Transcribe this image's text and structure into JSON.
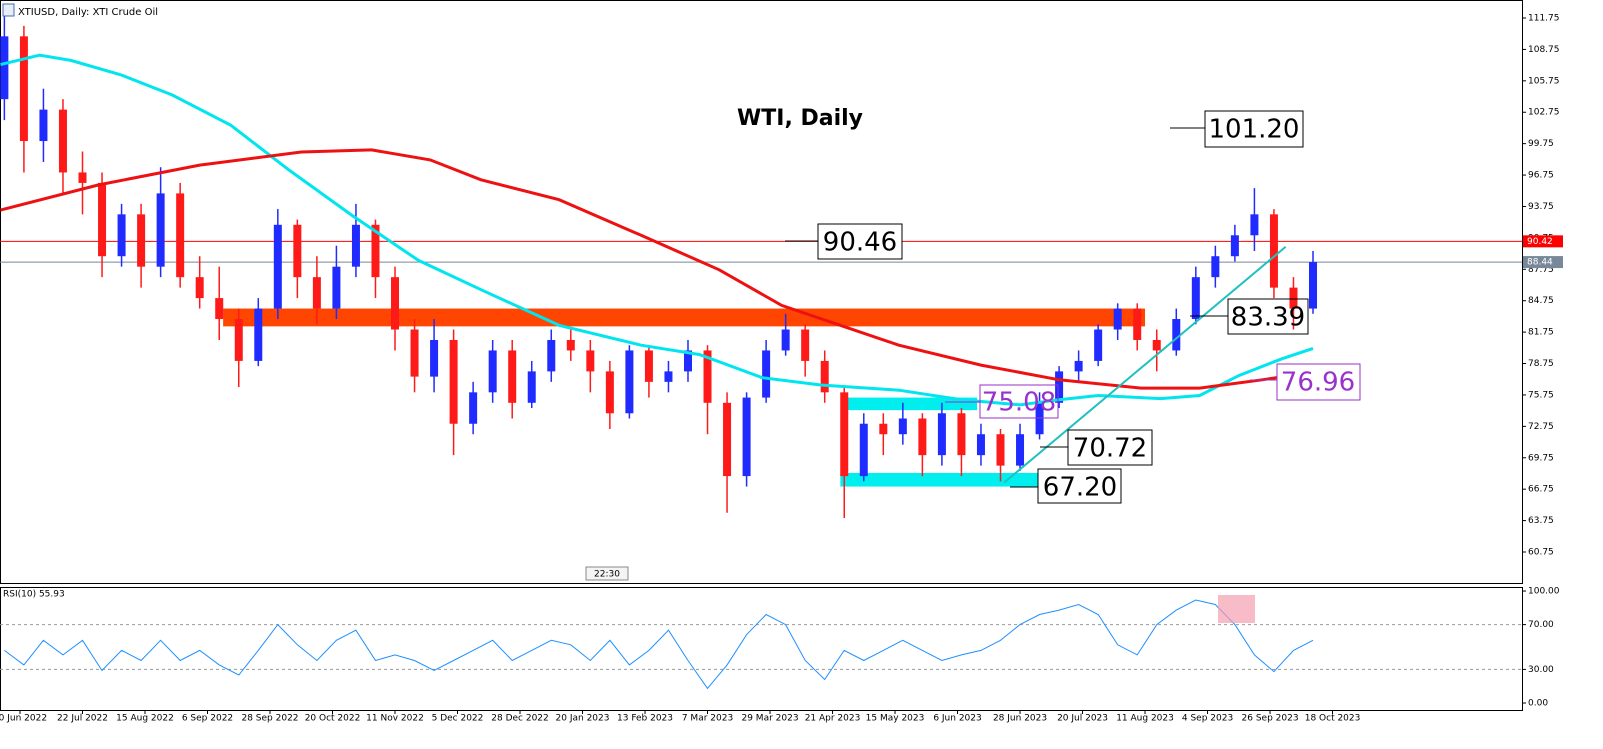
{
  "header": {
    "symbol": "XTIUSD, Daily: XTI Crude Oil",
    "time_marker": "22:30"
  },
  "chart_data": [
    {
      "type": "candlestick",
      "title": "WTI, Daily",
      "xlim": [
        -5.12,
        384.5
      ],
      "ylim": [
        57.79,
        113.47
      ],
      "yticks": [
        111.75,
        108.75,
        105.75,
        102.75,
        99.75,
        96.75,
        93.75,
        90.75,
        87.75,
        84.75,
        81.75,
        78.75,
        75.75,
        72.75,
        69.75,
        66.75,
        63.75,
        60.75
      ],
      "xticks": [
        {
          "value": 0,
          "label": "30 Jun 2022"
        },
        {
          "value": 16,
          "label": "22 Jul 2022"
        },
        {
          "value": 32,
          "label": "15 Aug 2022"
        },
        {
          "value": 48,
          "label": "6 Sep 2022"
        },
        {
          "value": 64,
          "label": "28 Sep 2022"
        },
        {
          "value": 80,
          "label": "20 Oct 2022"
        },
        {
          "value": 96,
          "label": "11 Nov 2022"
        },
        {
          "value": 112,
          "label": "5 Dec 2022"
        },
        {
          "value": 128,
          "label": "28 Dec 2022"
        },
        {
          "value": 144,
          "label": "20 Jan 2023"
        },
        {
          "value": 160,
          "label": "13 Feb 2023"
        },
        {
          "value": 176,
          "label": "7 Mar 2023"
        },
        {
          "value": 192,
          "label": "29 Mar 2023"
        },
        {
          "value": 208,
          "label": "21 Apr 2023"
        },
        {
          "value": 224,
          "label": "15 May 2023"
        },
        {
          "value": 240,
          "label": "6 Jun 2023"
        },
        {
          "value": 256,
          "label": "28 Jun 2023"
        },
        {
          "value": 272,
          "label": "20 Jul 2023"
        },
        {
          "value": 288,
          "label": "11 Aug 2023"
        },
        {
          "value": 304,
          "label": "4 Sep 2023"
        },
        {
          "value": 320,
          "label": "26 Sep 2023"
        },
        {
          "value": 336,
          "label": "18 Oct 2023"
        }
      ],
      "up_color": "#1f2bff",
      "down_color": "#ff1a1a",
      "x": [
        -4,
        1,
        6,
        11,
        16,
        21,
        26,
        31,
        36,
        41,
        46,
        51,
        56,
        61,
        66,
        71,
        76,
        81,
        86,
        91,
        96,
        101,
        106,
        111,
        116,
        121,
        126,
        131,
        136,
        141,
        146,
        151,
        156,
        161,
        166,
        171,
        176,
        181,
        186,
        191,
        196,
        201,
        206,
        211,
        216,
        221,
        226,
        231,
        236,
        241,
        246,
        251,
        256,
        261,
        266,
        271,
        276,
        281,
        286,
        291,
        296,
        301,
        306,
        311,
        316,
        321,
        326,
        331
      ],
      "open": [
        104,
        110,
        100,
        103,
        97,
        96,
        89,
        93,
        88,
        95,
        87,
        85,
        83,
        79,
        84,
        92,
        87,
        84,
        88,
        92,
        87,
        82,
        77.5,
        81,
        73,
        76,
        80,
        75,
        78,
        81,
        80,
        78,
        74,
        80,
        77,
        78,
        80,
        75,
        68,
        75.5,
        80,
        82,
        79,
        76,
        68,
        73,
        72,
        73.5,
        70,
        74,
        70,
        72,
        69,
        72,
        75,
        78,
        79,
        82,
        84,
        81,
        80,
        83,
        87,
        89,
        91,
        93,
        86,
        84
      ],
      "high": [
        112,
        111,
        105,
        104,
        99,
        97,
        94,
        94,
        97.5,
        96,
        89,
        88,
        84,
        85,
        93.5,
        92.5,
        89,
        90,
        94,
        92.5,
        88,
        83,
        83,
        82,
        77,
        81,
        81,
        79,
        82,
        82,
        81,
        79,
        80.5,
        80.5,
        79,
        81,
        80.5,
        76,
        76,
        81,
        83.5,
        82.5,
        80,
        76.5,
        74,
        74,
        75,
        74,
        75,
        74.5,
        73,
        72.5,
        73,
        76,
        78.5,
        80,
        82.5,
        84.5,
        84.5,
        82,
        84,
        88,
        90,
        92,
        95.5,
        93.5,
        87,
        89.5
      ],
      "low": [
        102,
        97,
        98,
        95,
        93,
        87,
        88,
        86,
        87,
        86,
        84,
        81,
        76.5,
        78.5,
        83,
        85,
        82.5,
        83,
        87,
        85,
        80,
        76,
        76,
        70,
        72,
        75,
        73.5,
        74.5,
        77,
        79,
        76,
        72.5,
        73.5,
        75.5,
        76,
        77,
        72,
        64.5,
        67,
        75,
        79.5,
        77.5,
        75,
        64,
        67.5,
        70,
        71,
        68,
        69,
        68,
        69,
        67.5,
        68.5,
        71.5,
        74.5,
        77,
        78.5,
        81,
        80,
        78,
        79.5,
        82.5,
        86,
        88.5,
        89.5,
        85,
        82,
        83.5
      ],
      "close": [
        110,
        100,
        103,
        97,
        96,
        89,
        93,
        88,
        95,
        87,
        85,
        83,
        79,
        84,
        92,
        87,
        84,
        88,
        92,
        87,
        82,
        77.5,
        81,
        73,
        76,
        80,
        75,
        78,
        81,
        80,
        78,
        74,
        80,
        77,
        78,
        80,
        75,
        68,
        75.5,
        80,
        82,
        79,
        76,
        68,
        73,
        72,
        73.5,
        70,
        74,
        70,
        72,
        69,
        72,
        75,
        78,
        79,
        82,
        84,
        81,
        80,
        83,
        87,
        89,
        91,
        93,
        86,
        84,
        88.44
      ],
      "overlays": [
        {
          "color": "#00e5ee",
          "x": [
            -5,
            5,
            13,
            26,
            39,
            54,
            69,
            85,
            102,
            118,
            138,
            159,
            174,
            190,
            205,
            225,
            241,
            256,
            266,
            276,
            292,
            302,
            312,
            323,
            331
          ],
          "values": [
            107.3,
            108.2,
            107.7,
            106.3,
            104.4,
            101.5,
            97.2,
            92.9,
            88.6,
            85.8,
            82.4,
            80.5,
            79.6,
            77.4,
            76.7,
            76.2,
            75.3,
            74.8,
            75.3,
            75.7,
            75.4,
            75.7,
            77.6,
            79.2,
            80.2
          ]
        },
        {
          "color": "#ee1111",
          "x": [
            -5,
            20,
            46,
            72,
            90,
            105,
            118,
            138,
            159,
            179,
            195,
            210,
            225,
            246,
            266,
            287,
            302,
            318,
            331
          ],
          "values": [
            93.4,
            95.8,
            97.7,
            98.95,
            99.15,
            98.2,
            96.3,
            94.4,
            91.0,
            87.7,
            84.3,
            82.4,
            80.5,
            78.6,
            77.2,
            76.4,
            76.4,
            77.2,
            77.9
          ]
        }
      ],
      "levels": [
        {
          "value": 90.42,
          "color": "#ff0000"
        },
        {
          "value": 88.44,
          "color": "#778899"
        }
      ],
      "zones": [
        {
          "x": [
            52,
            288
          ],
          "y": [
            82.3,
            84.0
          ],
          "color": "#ff4500"
        },
        {
          "x": [
            211,
            245
          ],
          "y": [
            74.3,
            75.5
          ],
          "color": "#00eeee"
        },
        {
          "x": [
            210,
            261
          ],
          "y": [
            67.0,
            68.3
          ],
          "color": "#00eeee"
        }
      ],
      "trendline": {
        "x": [
          252,
          324
        ],
        "y": [
          67.4,
          89.9
        ],
        "color": "#20c0c0"
      },
      "annotations": [
        "101.20",
        "90.46",
        "83.39",
        "70.72",
        "67.20",
        "75.08",
        "76.96"
      ]
    },
    {
      "type": "line",
      "title": "RSI(10) 55.93",
      "color": "#1e90ff",
      "xlim": [
        -5.12,
        384.5
      ],
      "ylim": [
        -6.25,
        103.6
      ],
      "yticks": [
        {
          "value": 100,
          "label": "100.00"
        },
        {
          "value": 70,
          "label": "70.00"
        },
        {
          "value": 30,
          "label": "30.00"
        },
        {
          "value": 0,
          "label": "0.00"
        }
      ],
      "levels": [
        70,
        30
      ],
      "x": [
        -4,
        1,
        6,
        11,
        16,
        21,
        26,
        31,
        36,
        41,
        46,
        51,
        56,
        61,
        66,
        71,
        76,
        81,
        86,
        91,
        96,
        101,
        106,
        111,
        116,
        121,
        126,
        131,
        136,
        141,
        146,
        151,
        156,
        161,
        166,
        171,
        176,
        181,
        186,
        191,
        196,
        201,
        206,
        211,
        216,
        221,
        226,
        231,
        236,
        241,
        246,
        251,
        256,
        261,
        266,
        271,
        276,
        281,
        286,
        291,
        296,
        301,
        306,
        311,
        316,
        321,
        326,
        331
      ],
      "values": [
        47,
        34,
        56,
        43,
        56,
        29,
        47,
        38,
        56,
        38,
        47,
        34,
        25,
        47,
        70,
        52,
        38,
        56,
        65,
        38,
        43,
        38,
        29,
        38,
        47,
        56,
        38,
        47,
        56,
        52,
        38,
        56,
        34,
        47,
        65,
        38,
        13,
        34,
        61,
        79,
        70,
        38,
        21,
        47,
        38,
        47,
        56,
        47,
        38,
        43,
        47,
        56,
        70,
        79,
        83,
        88,
        79,
        52,
        43,
        70,
        83,
        92,
        88,
        70,
        43,
        28,
        47,
        56
      ]
    }
  ]
}
